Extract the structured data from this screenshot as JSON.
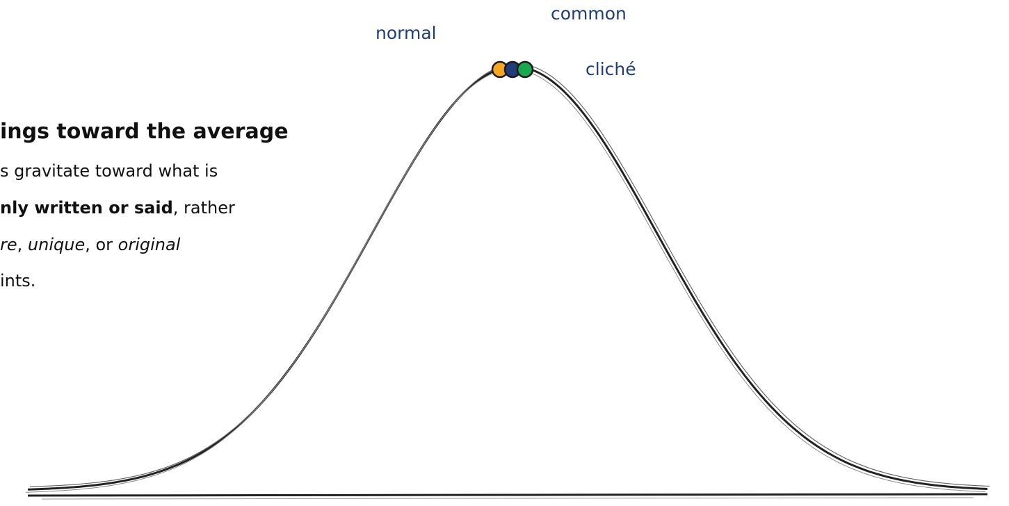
{
  "heading": "ings toward the average",
  "body": [
    [
      {
        "text": "s gravitate toward what is",
        "style": "normal"
      }
    ],
    [
      {
        "text": "nly written or said",
        "style": "bold"
      },
      {
        "text": ", rather",
        "style": "normal"
      }
    ],
    [
      {
        "text": "re",
        "style": "italic"
      },
      {
        "text": ", ",
        "style": "normal"
      },
      {
        "text": "unique",
        "style": "italic"
      },
      {
        "text": ", or ",
        "style": "normal"
      },
      {
        "text": "original",
        "style": "italic"
      }
    ],
    [
      {
        "text": "ints.",
        "style": "normal"
      }
    ]
  ],
  "labels": {
    "normal": "normal",
    "common": "common",
    "cliche": "cliché"
  }
}
